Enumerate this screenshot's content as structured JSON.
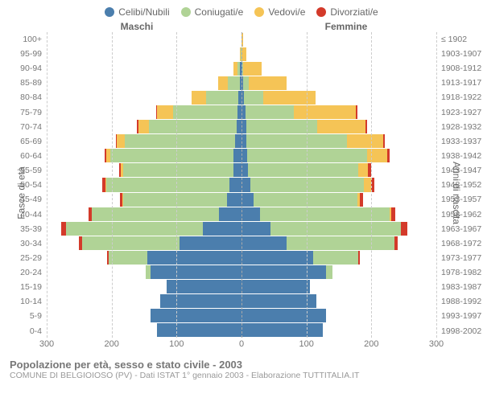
{
  "legend": {
    "items": [
      {
        "label": "Celibi/Nubili",
        "color": "#4b7ead"
      },
      {
        "label": "Coniugati/e",
        "color": "#b0d396"
      },
      {
        "label": "Vedovi/e",
        "color": "#f5c456"
      },
      {
        "label": "Divorziati/e",
        "color": "#d33a2a"
      }
    ]
  },
  "section_labels": {
    "male": "Maschi",
    "female": "Femmine"
  },
  "y_axis_left_title": "Fasce di età",
  "y_axis_right_title": "Anni di nascita",
  "footer": {
    "title": "Popolazione per età, sesso e stato civile - 2003",
    "sub": "COMUNE DI BELGIOIOSO (PV) - Dati ISTAT 1° gennaio 2003 - Elaborazione TUTTITALIA.IT"
  },
  "chart": {
    "type": "population-pyramid",
    "x_max": 300,
    "x_ticks": [
      300,
      200,
      100,
      0,
      100,
      200,
      300
    ],
    "background_color": "#ffffff",
    "grid_color": "#cccccc",
    "age_groups": [
      "100+",
      "95-99",
      "90-94",
      "85-89",
      "80-84",
      "75-79",
      "70-74",
      "65-69",
      "60-64",
      "55-59",
      "50-54",
      "45-49",
      "40-44",
      "35-39",
      "30-34",
      "25-29",
      "20-24",
      "15-19",
      "10-14",
      "5-9",
      "0-4"
    ],
    "birth_years": [
      "≤ 1902",
      "1903-1907",
      "1908-1912",
      "1913-1917",
      "1918-1922",
      "1923-1927",
      "1928-1932",
      "1933-1937",
      "1938-1942",
      "1943-1947",
      "1948-1952",
      "1953-1957",
      "1958-1962",
      "1963-1967",
      "1968-1972",
      "1973-1977",
      "1978-1982",
      "1983-1987",
      "1988-1992",
      "1993-1997",
      "1998-2002"
    ],
    "male": [
      {
        "s": 0,
        "m": 0,
        "w": 0,
        "d": 0
      },
      {
        "s": 0,
        "m": 1,
        "w": 1,
        "d": 0
      },
      {
        "s": 2,
        "m": 4,
        "w": 6,
        "d": 0
      },
      {
        "s": 3,
        "m": 18,
        "w": 15,
        "d": 0
      },
      {
        "s": 5,
        "m": 50,
        "w": 22,
        "d": 0
      },
      {
        "s": 6,
        "m": 100,
        "w": 24,
        "d": 1
      },
      {
        "s": 8,
        "m": 135,
        "w": 16,
        "d": 2
      },
      {
        "s": 10,
        "m": 170,
        "w": 12,
        "d": 2
      },
      {
        "s": 12,
        "m": 190,
        "w": 6,
        "d": 3
      },
      {
        "s": 12,
        "m": 170,
        "w": 4,
        "d": 3
      },
      {
        "s": 18,
        "m": 190,
        "w": 2,
        "d": 4
      },
      {
        "s": 22,
        "m": 160,
        "w": 1,
        "d": 4
      },
      {
        "s": 35,
        "m": 195,
        "w": 0,
        "d": 6
      },
      {
        "s": 60,
        "m": 210,
        "w": 0,
        "d": 8
      },
      {
        "s": 95,
        "m": 150,
        "w": 0,
        "d": 5
      },
      {
        "s": 145,
        "m": 60,
        "w": 0,
        "d": 2
      },
      {
        "s": 140,
        "m": 8,
        "w": 0,
        "d": 0
      },
      {
        "s": 115,
        "m": 0,
        "w": 0,
        "d": 0
      },
      {
        "s": 125,
        "m": 0,
        "w": 0,
        "d": 0
      },
      {
        "s": 140,
        "m": 0,
        "w": 0,
        "d": 0
      },
      {
        "s": 130,
        "m": 0,
        "w": 0,
        "d": 0
      }
    ],
    "female": [
      {
        "s": 0,
        "m": 0,
        "w": 3,
        "d": 0
      },
      {
        "s": 0,
        "m": 0,
        "w": 7,
        "d": 0
      },
      {
        "s": 1,
        "m": 2,
        "w": 28,
        "d": 0
      },
      {
        "s": 3,
        "m": 8,
        "w": 58,
        "d": 0
      },
      {
        "s": 4,
        "m": 30,
        "w": 80,
        "d": 0
      },
      {
        "s": 6,
        "m": 75,
        "w": 95,
        "d": 2
      },
      {
        "s": 7,
        "m": 110,
        "w": 74,
        "d": 2
      },
      {
        "s": 8,
        "m": 155,
        "w": 55,
        "d": 3
      },
      {
        "s": 9,
        "m": 185,
        "w": 30,
        "d": 4
      },
      {
        "s": 10,
        "m": 170,
        "w": 15,
        "d": 4
      },
      {
        "s": 14,
        "m": 175,
        "w": 10,
        "d": 5
      },
      {
        "s": 18,
        "m": 160,
        "w": 4,
        "d": 5
      },
      {
        "s": 28,
        "m": 200,
        "w": 2,
        "d": 7
      },
      {
        "s": 45,
        "m": 200,
        "w": 1,
        "d": 9
      },
      {
        "s": 70,
        "m": 165,
        "w": 0,
        "d": 6
      },
      {
        "s": 110,
        "m": 70,
        "w": 0,
        "d": 2
      },
      {
        "s": 130,
        "m": 10,
        "w": 0,
        "d": 0
      },
      {
        "s": 105,
        "m": 0,
        "w": 0,
        "d": 0
      },
      {
        "s": 115,
        "m": 0,
        "w": 0,
        "d": 0
      },
      {
        "s": 130,
        "m": 0,
        "w": 0,
        "d": 0
      },
      {
        "s": 125,
        "m": 0,
        "w": 0,
        "d": 0
      }
    ]
  }
}
